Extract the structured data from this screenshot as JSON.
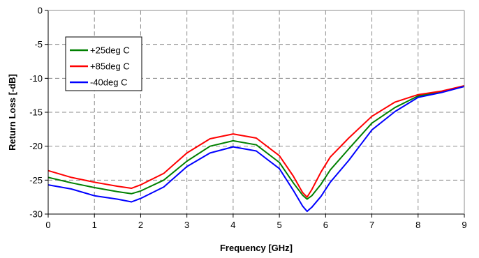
{
  "chart_data": {
    "type": "line",
    "title": "",
    "xlabel": "Frequency [GHz]",
    "ylabel": "Return Loss [-dB]",
    "xlim": [
      0,
      9
    ],
    "ylim": [
      -30,
      0
    ],
    "xticks": [
      0,
      1,
      2,
      3,
      4,
      5,
      6,
      7,
      8,
      9
    ],
    "yticks": [
      0,
      -5,
      -10,
      -15,
      -20,
      -25,
      -30
    ],
    "grid": true,
    "legend_position": "top-left",
    "series": [
      {
        "name": "+25deg C",
        "color": "#008000",
        "x": [
          0,
          0.5,
          1.0,
          1.5,
          1.8,
          2.0,
          2.5,
          3.0,
          3.5,
          4.0,
          4.5,
          5.0,
          5.3,
          5.5,
          5.6,
          5.7,
          5.9,
          6.1,
          6.5,
          7.0,
          7.5,
          8.0,
          8.5,
          9.0
        ],
        "y": [
          -24.6,
          -25.4,
          -26.1,
          -26.7,
          -27.0,
          -26.6,
          -25.0,
          -22.2,
          -20.0,
          -19.2,
          -19.8,
          -22.4,
          -25.4,
          -27.2,
          -27.8,
          -27.3,
          -25.6,
          -23.5,
          -20.4,
          -16.6,
          -14.3,
          -12.6,
          -12.0,
          -11.1
        ]
      },
      {
        "name": "+85deg C",
        "color": "#ff0000",
        "x": [
          0,
          0.5,
          1.0,
          1.5,
          1.8,
          2.0,
          2.5,
          3.0,
          3.5,
          4.0,
          4.5,
          5.0,
          5.3,
          5.5,
          5.6,
          5.7,
          5.9,
          6.1,
          6.5,
          7.0,
          7.5,
          8.0,
          8.5,
          9.0
        ],
        "y": [
          -23.6,
          -24.6,
          -25.3,
          -25.9,
          -26.2,
          -25.7,
          -24.0,
          -21.0,
          -18.9,
          -18.2,
          -18.8,
          -21.4,
          -24.4,
          -26.8,
          -27.5,
          -26.4,
          -23.8,
          -21.6,
          -18.8,
          -15.6,
          -13.5,
          -12.4,
          -11.9,
          -11.1
        ]
      },
      {
        "name": "-40deg C",
        "color": "#0000ff",
        "x": [
          0,
          0.5,
          1.0,
          1.5,
          1.8,
          2.0,
          2.5,
          3.0,
          3.5,
          4.0,
          4.5,
          5.0,
          5.3,
          5.5,
          5.6,
          5.7,
          5.9,
          6.1,
          6.5,
          7.0,
          7.5,
          8.0,
          8.5,
          9.0
        ],
        "y": [
          -25.7,
          -26.3,
          -27.3,
          -27.8,
          -28.2,
          -27.7,
          -26.0,
          -23.0,
          -21.0,
          -20.1,
          -20.7,
          -23.3,
          -26.5,
          -28.8,
          -29.6,
          -29.0,
          -27.4,
          -25.3,
          -22.1,
          -17.6,
          -14.9,
          -12.8,
          -12.1,
          -11.2
        ]
      }
    ]
  }
}
